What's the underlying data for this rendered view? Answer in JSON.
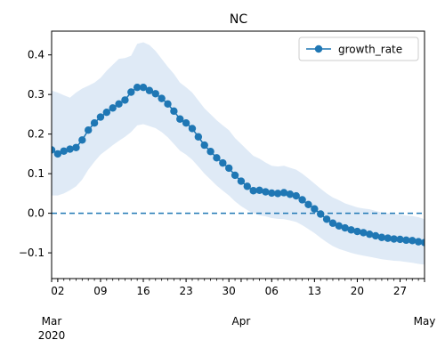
{
  "chart_data": {
    "type": "line",
    "title": "NC",
    "xlabel": "",
    "ylabel": "",
    "x_start": "2020-03-01",
    "x_end": "2020-05-01",
    "xlim": [
      "2020-03-01",
      "2020-05-01"
    ],
    "ylim": [
      -0.165,
      0.46
    ],
    "yticks": [
      -0.1,
      0.0,
      0.1,
      0.2,
      0.3,
      0.4
    ],
    "ytick_labels": [
      "−0.1",
      "0.0",
      "0.1",
      "0.2",
      "0.3",
      "0.4"
    ],
    "xticks_major": [
      {
        "date": "2020-03-02",
        "label": "02"
      },
      {
        "date": "2020-03-09",
        "label": "09"
      },
      {
        "date": "2020-03-16",
        "label": "16"
      },
      {
        "date": "2020-03-23",
        "label": "23"
      },
      {
        "date": "2020-03-30",
        "label": "30"
      },
      {
        "date": "2020-04-06",
        "label": "06"
      },
      {
        "date": "2020-04-13",
        "label": "13"
      },
      {
        "date": "2020-04-20",
        "label": "20"
      },
      {
        "date": "2020-04-27",
        "label": "27"
      }
    ],
    "xticks_month": [
      {
        "date": "2020-03-01",
        "label": "Mar"
      },
      {
        "date": "2020-04-01",
        "label": "Apr"
      },
      {
        "date": "2020-05-01",
        "label": "May"
      }
    ],
    "year_label": "2020",
    "reference_line": {
      "y": 0.0,
      "style": "dashed",
      "color": "#1f77b4"
    },
    "legend": {
      "position": "top-right",
      "entries": [
        "growth_rate"
      ]
    },
    "colors": {
      "series": "#1f77b4",
      "band": "#dfeaf6"
    },
    "series": [
      {
        "name": "growth_rate",
        "x": [
          "2020-03-01",
          "2020-03-02",
          "2020-03-03",
          "2020-03-04",
          "2020-03-05",
          "2020-03-06",
          "2020-03-07",
          "2020-03-08",
          "2020-03-09",
          "2020-03-10",
          "2020-03-11",
          "2020-03-12",
          "2020-03-13",
          "2020-03-14",
          "2020-03-15",
          "2020-03-16",
          "2020-03-17",
          "2020-03-18",
          "2020-03-19",
          "2020-03-20",
          "2020-03-21",
          "2020-03-22",
          "2020-03-23",
          "2020-03-24",
          "2020-03-25",
          "2020-03-26",
          "2020-03-27",
          "2020-03-28",
          "2020-03-29",
          "2020-03-30",
          "2020-03-31",
          "2020-04-01",
          "2020-04-02",
          "2020-04-03",
          "2020-04-04",
          "2020-04-05",
          "2020-04-06",
          "2020-04-07",
          "2020-04-08",
          "2020-04-09",
          "2020-04-10",
          "2020-04-11",
          "2020-04-12",
          "2020-04-13",
          "2020-04-14",
          "2020-04-15",
          "2020-04-16",
          "2020-04-17",
          "2020-04-18",
          "2020-04-19",
          "2020-04-20",
          "2020-04-21",
          "2020-04-22",
          "2020-04-23",
          "2020-04-24",
          "2020-04-25",
          "2020-04-26",
          "2020-04-27",
          "2020-04-28",
          "2020-04-29",
          "2020-04-30",
          "2020-05-01"
        ],
        "y": [
          0.16,
          0.15,
          0.157,
          0.162,
          0.166,
          0.185,
          0.21,
          0.228,
          0.243,
          0.255,
          0.266,
          0.276,
          0.286,
          0.306,
          0.318,
          0.318,
          0.31,
          0.302,
          0.29,
          0.276,
          0.258,
          0.238,
          0.228,
          0.214,
          0.193,
          0.172,
          0.156,
          0.14,
          0.127,
          0.114,
          0.096,
          0.081,
          0.068,
          0.057,
          0.058,
          0.054,
          0.051,
          0.05,
          0.052,
          0.048,
          0.044,
          0.034,
          0.022,
          0.011,
          -0.002,
          -0.015,
          -0.025,
          -0.032,
          -0.037,
          -0.042,
          -0.046,
          -0.049,
          -0.053,
          -0.057,
          -0.061,
          -0.063,
          -0.065,
          -0.066,
          -0.068,
          -0.069,
          -0.072,
          -0.074
        ],
        "lower": [
          0.045,
          0.045,
          0.05,
          0.058,
          0.068,
          0.085,
          0.11,
          0.13,
          0.148,
          0.16,
          0.172,
          0.183,
          0.193,
          0.205,
          0.222,
          0.225,
          0.22,
          0.215,
          0.205,
          0.192,
          0.175,
          0.158,
          0.148,
          0.135,
          0.118,
          0.1,
          0.085,
          0.07,
          0.057,
          0.045,
          0.03,
          0.018,
          0.008,
          0.0,
          -0.005,
          -0.008,
          -0.012,
          -0.014,
          -0.015,
          -0.018,
          -0.022,
          -0.03,
          -0.04,
          -0.05,
          -0.062,
          -0.073,
          -0.083,
          -0.09,
          -0.095,
          -0.1,
          -0.104,
          -0.107,
          -0.11,
          -0.113,
          -0.116,
          -0.118,
          -0.12,
          -0.121,
          -0.123,
          -0.125,
          -0.128,
          -0.13
        ],
        "upper": [
          0.31,
          0.305,
          0.298,
          0.292,
          0.305,
          0.315,
          0.322,
          0.33,
          0.342,
          0.36,
          0.375,
          0.39,
          0.392,
          0.398,
          0.428,
          0.432,
          0.425,
          0.41,
          0.39,
          0.37,
          0.352,
          0.33,
          0.318,
          0.305,
          0.285,
          0.265,
          0.25,
          0.235,
          0.222,
          0.21,
          0.19,
          0.175,
          0.16,
          0.145,
          0.138,
          0.128,
          0.12,
          0.118,
          0.12,
          0.115,
          0.11,
          0.1,
          0.088,
          0.075,
          0.062,
          0.05,
          0.04,
          0.033,
          0.025,
          0.02,
          0.015,
          0.012,
          0.01,
          0.006,
          0.002,
          0.0,
          -0.002,
          -0.004,
          -0.006,
          -0.007,
          -0.01,
          -0.015
        ]
      }
    ]
  }
}
